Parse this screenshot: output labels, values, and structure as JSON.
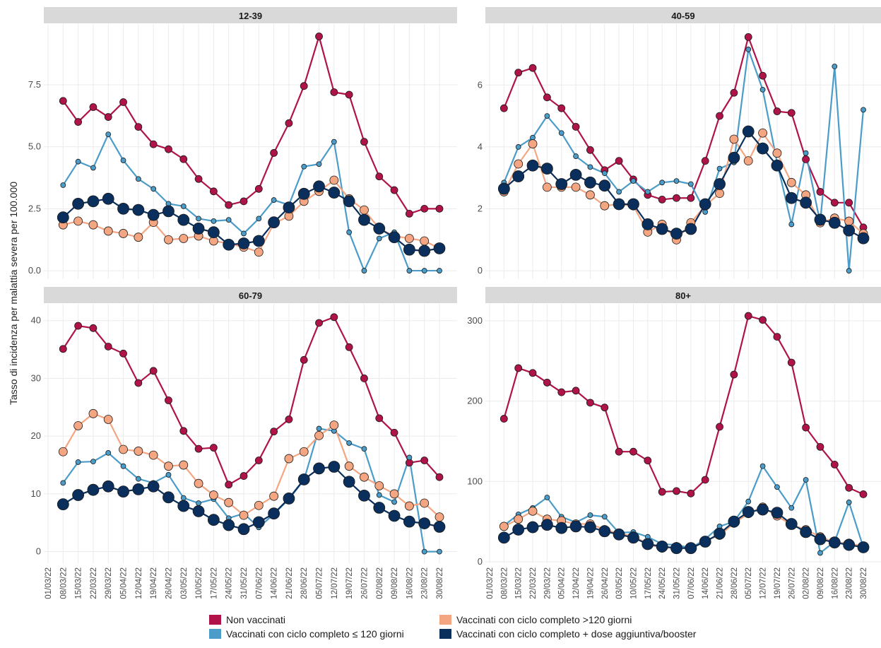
{
  "chart_data": [
    {
      "type": "line",
      "title": "12-39",
      "ylabel": "Tasso di incidenza per malattia severa per 100.000",
      "ylim": [
        -0.34,
        9.95
      ],
      "yticks": [
        {
          "value": 0,
          "label": "0.0"
        },
        {
          "value": 2.5,
          "label": "2.5"
        },
        {
          "value": 5,
          "label": "5.0"
        },
        {
          "value": 7.5,
          "label": "7.5"
        }
      ],
      "series": [
        {
          "name": "Non vaccinati",
          "color": "#b0134a",
          "values": [
            null,
            6.85,
            6.0,
            6.6,
            6.2,
            6.8,
            5.8,
            5.1,
            4.9,
            4.5,
            3.7,
            3.2,
            2.65,
            2.8,
            3.3,
            4.75,
            5.95,
            7.45,
            9.45,
            7.2,
            7.1,
            5.2,
            3.8,
            3.25,
            2.3,
            2.5,
            2.5
          ]
        },
        {
          "name": "Vaccinati con ciclo completo ≤ 120 giorni",
          "color": "#4b9cc9",
          "values": [
            null,
            3.45,
            4.4,
            4.15,
            5.5,
            4.45,
            3.7,
            3.3,
            2.7,
            2.6,
            2.1,
            2.0,
            2.05,
            1.5,
            2.1,
            2.85,
            2.65,
            4.2,
            4.3,
            5.2,
            1.55,
            0,
            1.3,
            1.55,
            0,
            0,
            0
          ]
        },
        {
          "name": "Vaccinati con ciclo completo >120 giorni",
          "color": "#f4a582",
          "values": [
            null,
            1.85,
            2.0,
            1.85,
            1.6,
            1.5,
            1.35,
            1.95,
            1.25,
            1.3,
            1.4,
            1.2,
            1.1,
            0.95,
            0.75,
            1.9,
            2.2,
            2.8,
            3.2,
            3.65,
            2.9,
            2.45,
            1.7,
            1.4,
            1.3,
            1.2,
            0.9
          ]
        },
        {
          "name": "Vaccinati con ciclo completo + dose aggiuntiva/booster",
          "color": "#0a2f5c",
          "values": [
            null,
            2.15,
            2.7,
            2.8,
            2.9,
            2.5,
            2.45,
            2.25,
            2.4,
            2.05,
            1.7,
            1.55,
            1.05,
            1.1,
            1.2,
            1.95,
            2.55,
            3.1,
            3.4,
            3.15,
            2.8,
            2.05,
            1.7,
            1.35,
            0.85,
            0.8,
            0.9
          ]
        }
      ]
    },
    {
      "type": "line",
      "title": "40-59",
      "ylim": [
        -0.27,
        7.97
      ],
      "yticks": [
        0,
        2,
        4,
        6
      ],
      "series": [
        {
          "name": "Non vaccinati",
          "color": "#b0134a",
          "values": [
            null,
            5.25,
            6.4,
            6.55,
            5.6,
            5.25,
            4.65,
            3.9,
            3.25,
            3.55,
            2.95,
            2.45,
            2.3,
            2.35,
            2.35,
            3.55,
            5.0,
            5.75,
            7.55,
            6.3,
            5.15,
            5.1,
            3.6,
            2.55,
            2.2,
            2.2,
            1.4
          ]
        },
        {
          "name": "Vaccinati con ciclo completo ≤ 120 giorni",
          "color": "#4b9cc9",
          "values": [
            null,
            2.85,
            4.0,
            4.3,
            5.0,
            4.45,
            3.7,
            3.35,
            3.15,
            2.55,
            2.9,
            2.55,
            2.85,
            2.9,
            2.8,
            1.9,
            3.3,
            3.5,
            7.15,
            5.85,
            3.5,
            1.5,
            3.8,
            1.55,
            6.6,
            0,
            5.2
          ]
        },
        {
          "name": "Vaccinati con ciclo completo >120 giorni",
          "color": "#f4a582",
          "values": [
            null,
            2.55,
            3.45,
            4.1,
            2.7,
            2.7,
            2.7,
            2.45,
            2.1,
            2.15,
            2.1,
            1.25,
            1.5,
            1.0,
            1.55,
            2.1,
            2.5,
            4.25,
            3.55,
            4.45,
            3.8,
            2.85,
            2.45,
            1.55,
            1.7,
            1.6,
            1.2
          ]
        },
        {
          "name": "Vaccinati con ciclo completo + dose aggiuntiva/booster",
          "color": "#0a2f5c",
          "values": [
            null,
            2.65,
            3.05,
            3.4,
            3.3,
            2.8,
            3.1,
            2.85,
            2.75,
            2.15,
            2.15,
            1.5,
            1.35,
            1.2,
            1.35,
            2.15,
            2.8,
            3.65,
            4.5,
            3.95,
            3.4,
            2.35,
            2.2,
            1.65,
            1.55,
            1.3,
            1.05
          ]
        }
      ]
    },
    {
      "type": "line",
      "title": "60-79",
      "ylim": [
        -2,
        42.9
      ],
      "yticks": [
        0,
        10,
        20,
        30,
        40
      ],
      "categories": [
        "01/03/22",
        "08/03/22",
        "15/03/22",
        "22/03/22",
        "29/03/22",
        "05/04/22",
        "12/04/22",
        "19/04/22",
        "26/04/22",
        "03/05/22",
        "10/05/22",
        "17/05/22",
        "24/05/22",
        "31/05/22",
        "07/06/22",
        "14/06/22",
        "21/06/22",
        "28/06/22",
        "05/07/22",
        "12/07/22",
        "19/07/22",
        "26/07/22",
        "02/08/22",
        "09/08/22",
        "16/08/22",
        "23/08/22",
        "30/08/22"
      ],
      "series": [
        {
          "name": "Non vaccinati",
          "color": "#b0134a",
          "values": [
            null,
            35.1,
            39.1,
            38.7,
            35.5,
            34.3,
            29.2,
            31.3,
            26.2,
            20.9,
            17.8,
            18.0,
            11.6,
            13.1,
            15.8,
            20.8,
            22.9,
            33.2,
            39.6,
            40.6,
            35.4,
            30.0,
            23.1,
            20.6,
            15.4,
            15.8,
            12.9
          ]
        },
        {
          "name": "Vaccinati con ciclo completo ≤ 120 giorni",
          "color": "#4b9cc9",
          "values": [
            null,
            11.9,
            15.5,
            15.6,
            17.1,
            14.8,
            12.6,
            11.9,
            13.3,
            9.3,
            8.4,
            9.1,
            5.8,
            6.6,
            4.2,
            6.5,
            9.1,
            12.4,
            21.3,
            20.9,
            18.8,
            17.8,
            9.8,
            8.6,
            16.3,
            0,
            0
          ]
        },
        {
          "name": "Vaccinati con ciclo completo >120 giorni",
          "color": "#f4a582",
          "values": [
            null,
            17.3,
            21.8,
            23.9,
            22.9,
            17.7,
            17.4,
            16.7,
            14.8,
            15.0,
            11.8,
            9.8,
            8.5,
            6.3,
            8.0,
            9.6,
            16.1,
            17.3,
            20.1,
            21.9,
            14.8,
            12.9,
            11.4,
            10.0,
            7.9,
            8.4,
            6.0
          ]
        },
        {
          "name": "Vaccinati con ciclo completo + dose aggiuntiva/booster",
          "color": "#0a2f5c",
          "values": [
            null,
            8.2,
            9.8,
            10.7,
            11.3,
            10.4,
            10.8,
            11.3,
            9.4,
            7.9,
            7.0,
            5.5,
            4.6,
            3.9,
            5.1,
            6.6,
            9.2,
            12.5,
            14.4,
            14.7,
            12.1,
            9.7,
            7.6,
            6.2,
            5.2,
            4.9,
            4.3
          ]
        }
      ]
    },
    {
      "type": "line",
      "title": "80+",
      "ylim": [
        -1.8,
        321
      ],
      "yticks": [
        0,
        100,
        200,
        300
      ],
      "categories": [
        "01/03/22",
        "08/03/22",
        "15/03/22",
        "22/03/22",
        "29/03/22",
        "05/04/22",
        "12/04/22",
        "19/04/22",
        "26/04/22",
        "03/05/22",
        "10/05/22",
        "17/05/22",
        "24/05/22",
        "31/05/22",
        "07/06/22",
        "14/06/22",
        "21/06/22",
        "28/06/22",
        "05/07/22",
        "12/07/22",
        "19/07/22",
        "26/07/22",
        "02/08/22",
        "09/08/22",
        "16/08/22",
        "23/08/22",
        "30/08/22"
      ],
      "series": [
        {
          "name": "Non vaccinati",
          "color": "#b0134a",
          "values": [
            null,
            178,
            241,
            235,
            223,
            211,
            213,
            198,
            192,
            137,
            137,
            126,
            87,
            88,
            85,
            102,
            168,
            233,
            306,
            301,
            280,
            248,
            167,
            143,
            121,
            92,
            84
          ]
        },
        {
          "name": "Vaccinati con ciclo completo ≤ 120 giorni",
          "color": "#4b9cc9",
          "values": [
            null,
            45,
            59,
            67,
            80,
            56,
            49,
            58,
            56,
            36,
            37,
            31,
            22,
            21,
            17,
            28,
            44,
            50,
            75,
            119,
            93,
            67,
            102,
            11,
            25,
            74,
            18
          ]
        },
        {
          "name": "Vaccinati con ciclo completo >120 giorni",
          "color": "#f4a582",
          "values": [
            null,
            44,
            53,
            63,
            53,
            51,
            47,
            47,
            40,
            35,
            32,
            22,
            17,
            18,
            16,
            26,
            33,
            48,
            60,
            68,
            57,
            46,
            40,
            31,
            24,
            23,
            19
          ]
        },
        {
          "name": "Vaccinati con ciclo completo + dose aggiuntiva/booster",
          "color": "#0a2f5c",
          "values": [
            null,
            30,
            40,
            43,
            46,
            42,
            44,
            43,
            38,
            34,
            30,
            22,
            19,
            17,
            17,
            25,
            35,
            50,
            62,
            65,
            61,
            47,
            37,
            28,
            24,
            21,
            18
          ]
        }
      ]
    }
  ]
}
